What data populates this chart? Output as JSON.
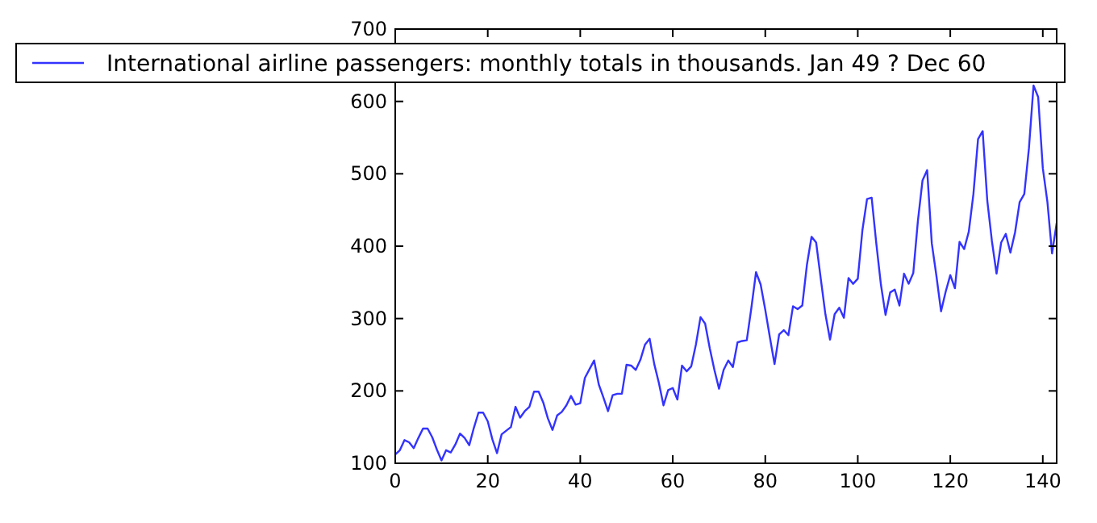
{
  "chart_data": {
    "type": "line",
    "x": [
      0,
      1,
      2,
      3,
      4,
      5,
      6,
      7,
      8,
      9,
      10,
      11,
      12,
      13,
      14,
      15,
      16,
      17,
      18,
      19,
      20,
      21,
      22,
      23,
      24,
      25,
      26,
      27,
      28,
      29,
      30,
      31,
      32,
      33,
      34,
      35,
      36,
      37,
      38,
      39,
      40,
      41,
      42,
      43,
      44,
      45,
      46,
      47,
      48,
      49,
      50,
      51,
      52,
      53,
      54,
      55,
      56,
      57,
      58,
      59,
      60,
      61,
      62,
      63,
      64,
      65,
      66,
      67,
      68,
      69,
      70,
      71,
      72,
      73,
      74,
      75,
      76,
      77,
      78,
      79,
      80,
      81,
      82,
      83,
      84,
      85,
      86,
      87,
      88,
      89,
      90,
      91,
      92,
      93,
      94,
      95,
      96,
      97,
      98,
      99,
      100,
      101,
      102,
      103,
      104,
      105,
      106,
      107,
      108,
      109,
      110,
      111,
      112,
      113,
      114,
      115,
      116,
      117,
      118,
      119,
      120,
      121,
      122,
      123,
      124,
      125,
      126,
      127,
      128,
      129,
      130,
      131,
      132,
      133,
      134,
      135,
      136,
      137,
      138,
      139,
      140,
      141,
      142,
      143
    ],
    "series": [
      {
        "name": "International airline passengers: monthly totals in thousands. Jan 49 ? Dec 60",
        "color": "#3333ff",
        "values": [
          112,
          118,
          132,
          129,
          121,
          135,
          148,
          148,
          136,
          119,
          104,
          118,
          115,
          126,
          141,
          135,
          125,
          149,
          170,
          170,
          158,
          133,
          114,
          140,
          145,
          150,
          178,
          163,
          172,
          178,
          199,
          199,
          184,
          162,
          146,
          166,
          171,
          180,
          193,
          181,
          183,
          218,
          230,
          242,
          209,
          191,
          172,
          194,
          196,
          196,
          236,
          235,
          229,
          243,
          264,
          272,
          237,
          211,
          180,
          201,
          204,
          188,
          235,
          227,
          234,
          264,
          302,
          293,
          259,
          229,
          203,
          229,
          242,
          233,
          267,
          269,
          270,
          315,
          364,
          347,
          312,
          274,
          237,
          278,
          284,
          277,
          317,
          313,
          318,
          374,
          413,
          405,
          355,
          306,
          271,
          306,
          315,
          301,
          356,
          348,
          355,
          422,
          465,
          467,
          404,
          347,
          305,
          336,
          340,
          318,
          362,
          348,
          363,
          435,
          491,
          505,
          404,
          359,
          310,
          337,
          360,
          342,
          406,
          396,
          420,
          472,
          548,
          559,
          463,
          407,
          362,
          405,
          417,
          391,
          419,
          461,
          472,
          535,
          622,
          606,
          508,
          461,
          390,
          432
        ]
      }
    ],
    "xlim": [
      0,
      143
    ],
    "xticks": [
      0,
      20,
      40,
      60,
      80,
      100,
      120,
      140
    ],
    "ylim": [
      100,
      700
    ],
    "yticks": [
      100,
      200,
      300,
      400,
      500,
      600,
      700
    ],
    "legend": "top",
    "grid": false,
    "marker": "none",
    "line_style": "solid"
  }
}
